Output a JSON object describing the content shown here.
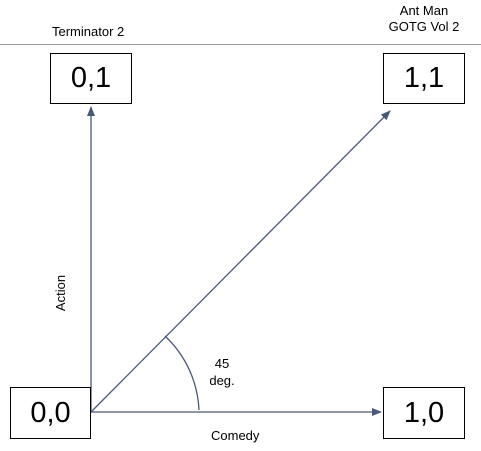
{
  "nodes": {
    "origin": "0,0",
    "action": "0,1",
    "both": "1,1",
    "comedy": "1,0"
  },
  "captions": {
    "action_movie": "Terminator 2",
    "both_movies": [
      "Ant Man",
      "GOTG Vol 2"
    ]
  },
  "axes": {
    "x_label": "Comedy",
    "y_label": "Action"
  },
  "angle": {
    "value": "45",
    "unit": "deg."
  },
  "colors": {
    "arrow": "#4a5878",
    "box_border": "#000000",
    "rule": "#9a9a9a"
  }
}
